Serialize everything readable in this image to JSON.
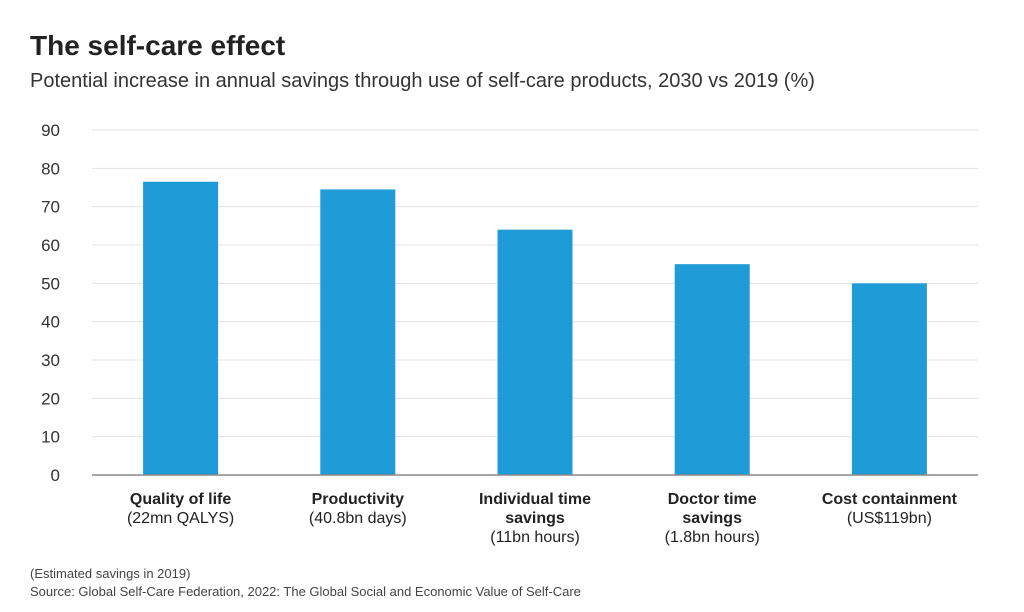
{
  "header": {
    "title": "The self-care effect",
    "subtitle": "Potential increase in annual savings through use of self-care products, 2030 vs 2019 (%)"
  },
  "footer": {
    "note": "(Estimated savings in 2019)",
    "source": "Source: Global Self-Care Federation, 2022: The Global Social and Economic Value of Self-Care"
  },
  "colors": {
    "bar": "#1f9bd7",
    "grid": "#e3e3e3",
    "axis": "#888888",
    "text": "#222222"
  },
  "chart_data": {
    "type": "bar",
    "title": "The self-care effect",
    "subtitle": "Potential increase in annual savings through use of self-care products, 2030 vs 2019 (%)",
    "categories": [
      [
        "Quality of life",
        "(22mn QALYS)"
      ],
      [
        "Productivity",
        "(40.8bn days)"
      ],
      [
        "Individual time",
        "savings",
        "(11bn hours)"
      ],
      [
        "Doctor time",
        "savings",
        "(1.8bn hours)"
      ],
      [
        "Cost containment",
        "(US$119bn)"
      ]
    ],
    "values": [
      76.5,
      74.5,
      64,
      55,
      50
    ],
    "yticks": [
      0,
      10,
      20,
      30,
      40,
      50,
      60,
      70,
      80,
      90
    ],
    "ylim": [
      0,
      90
    ],
    "grid": true,
    "xlabel": "",
    "ylabel": ""
  }
}
